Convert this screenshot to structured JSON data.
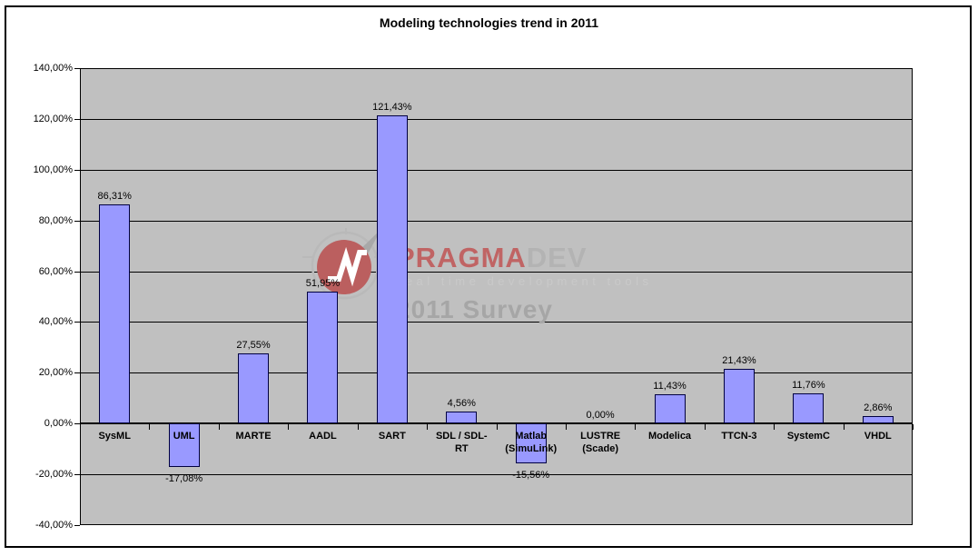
{
  "title": "Modeling technologies trend in 2011",
  "watermark": {
    "brand_red": "PRAGMA",
    "brand_gray": "DEV",
    "tagline": "real time development tools",
    "survey": "2011 Survey",
    "colors": {
      "brand_red": "#c06464",
      "brand_gray": "#b3b3b3",
      "tagline": "#c9c9c9",
      "survey": "#a6a6a6",
      "logo_disc": "#bb5f5f",
      "logo_ring": "#b9b9b9",
      "logo_arrow": "#a8a8a8"
    }
  },
  "chart_data": {
    "type": "bar",
    "title": "Modeling technologies trend in 2011",
    "categories": [
      "SysML",
      "UML",
      "MARTE",
      "AADL",
      "SART",
      "SDL / SDL-\nRT",
      "Matlab\n(SimuLink)",
      "LUSTRE\n(Scade)",
      "Modelica",
      "TTCN-3",
      "SystemC",
      "VHDL"
    ],
    "values": [
      86.31,
      -17.08,
      27.55,
      51.95,
      121.43,
      4.56,
      -15.56,
      0,
      11.43,
      21.43,
      11.76,
      2.86
    ],
    "value_labels": [
      "86,31%",
      "-17,08%",
      "27,55%",
      "51,95%",
      "121,43%",
      "4,56%",
      "-15,56%",
      "0,00%",
      "11,43%",
      "21,43%",
      "11,76%",
      "2,86%"
    ],
    "xlabel": "",
    "ylabel": "",
    "ylim": [
      -40,
      140
    ],
    "ytick_step": 20,
    "ytick_labels": [
      "140,00%",
      "120,00%",
      "100,00%",
      "80,00%",
      "60,00%",
      "40,00%",
      "20,00%",
      "0,00%",
      "-20,00%",
      "-40,00%"
    ],
    "grid": true,
    "legend_position": "none",
    "colors": {
      "bar_fill": "#9999ff",
      "bar_border": "#000040",
      "plot_bg": "#c0c0c0",
      "gridline": "#000000"
    }
  }
}
